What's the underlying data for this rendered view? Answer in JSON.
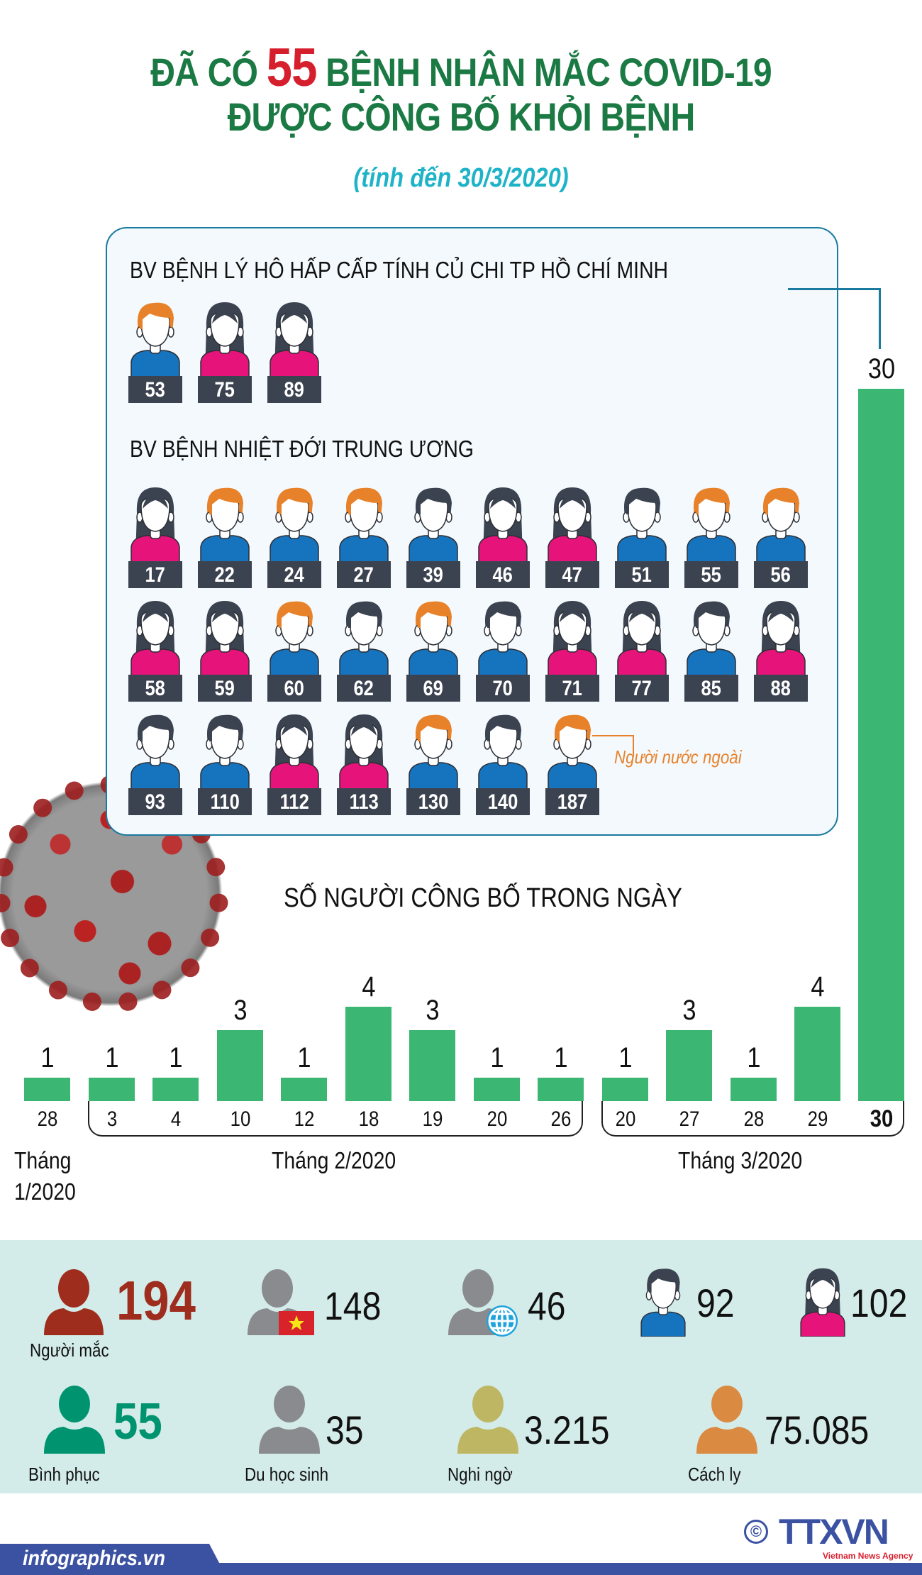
{
  "header": {
    "title_prefix": "ĐÃ CÓ",
    "title_highlight": "55",
    "title_suffix": "BỆNH NHÂN MẮC COVID-19",
    "title_line2": "ĐƯỢC CÔNG BỐ KHỎI BỆNH",
    "subtitle": "(tính đến 30/3/2020)"
  },
  "colors": {
    "title_green": "#1b7a44",
    "highlight_red": "#d61f2c",
    "subtitle_cyan": "#1fb3c8",
    "bar_green": "#3bb773",
    "panel_border": "#1a7aa0",
    "foreign_orange": "#e8822a",
    "male_shirt": "#1673bd",
    "female_shirt": "#e5137a",
    "hair_dark": "#3c4350",
    "stats_bg": "#d3ece9",
    "brand_blue": "#3b52a3"
  },
  "hospitals": [
    {
      "name": "BV BỆNH LÝ HÔ HẤP CẤP TÍNH CỦ CHI TP HỒ CHÍ MINH",
      "patients": [
        {
          "id": "53",
          "gender": "male",
          "foreign": true
        },
        {
          "id": "75",
          "gender": "female",
          "foreign": false
        },
        {
          "id": "89",
          "gender": "female",
          "foreign": false
        }
      ]
    },
    {
      "name": "BV BỆNH NHIỆT ĐỚI TRUNG ƯƠNG",
      "patients": [
        {
          "id": "17",
          "gender": "female",
          "foreign": false
        },
        {
          "id": "22",
          "gender": "male",
          "foreign": true
        },
        {
          "id": "24",
          "gender": "male",
          "foreign": true
        },
        {
          "id": "27",
          "gender": "male",
          "foreign": true
        },
        {
          "id": "39",
          "gender": "male",
          "foreign": false
        },
        {
          "id": "46",
          "gender": "female",
          "foreign": false
        },
        {
          "id": "47",
          "gender": "female",
          "foreign": false
        },
        {
          "id": "51",
          "gender": "male",
          "foreign": false
        },
        {
          "id": "55",
          "gender": "male",
          "foreign": true
        },
        {
          "id": "56",
          "gender": "male",
          "foreign": true
        },
        {
          "id": "58",
          "gender": "female",
          "foreign": false
        },
        {
          "id": "59",
          "gender": "female",
          "foreign": false
        },
        {
          "id": "60",
          "gender": "male",
          "foreign": true
        },
        {
          "id": "62",
          "gender": "male",
          "foreign": false
        },
        {
          "id": "69",
          "gender": "male",
          "foreign": true
        },
        {
          "id": "70",
          "gender": "male",
          "foreign": false
        },
        {
          "id": "71",
          "gender": "female",
          "foreign": false
        },
        {
          "id": "77",
          "gender": "female",
          "foreign": false
        },
        {
          "id": "85",
          "gender": "male",
          "foreign": false
        },
        {
          "id": "88",
          "gender": "female",
          "foreign": false
        },
        {
          "id": "93",
          "gender": "male",
          "foreign": false
        },
        {
          "id": "110",
          "gender": "male",
          "foreign": false
        },
        {
          "id": "112",
          "gender": "female",
          "foreign": false
        },
        {
          "id": "113",
          "gender": "female",
          "foreign": false
        },
        {
          "id": "130",
          "gender": "male",
          "foreign": true
        },
        {
          "id": "140",
          "gender": "male",
          "foreign": false
        },
        {
          "id": "187",
          "gender": "male",
          "foreign": true
        }
      ]
    }
  ],
  "legend": {
    "foreign_label": "Người nước ngoài"
  },
  "chart_data": {
    "type": "bar",
    "title": "SỐ NGƯỜI CÔNG BỐ TRONG NGÀY",
    "categories": [
      "28/1",
      "3/2",
      "4/2",
      "10/2",
      "12/2",
      "18/2",
      "19/2",
      "20/2",
      "26/2",
      "20/3",
      "27/3",
      "28/3",
      "29/3",
      "30/3"
    ],
    "tick_labels": [
      "28",
      "3",
      "4",
      "10",
      "12",
      "18",
      "19",
      "20",
      "26",
      "20",
      "27",
      "28",
      "29",
      "30"
    ],
    "values": [
      1,
      1,
      1,
      3,
      1,
      4,
      3,
      1,
      1,
      1,
      3,
      1,
      4,
      30
    ],
    "groups": [
      {
        "label": "Tháng 1/2020",
        "from": 0,
        "to": 0
      },
      {
        "label": "Tháng 2/2020",
        "from": 1,
        "to": 8
      },
      {
        "label": "Tháng 3/2020",
        "from": 9,
        "to": 13
      }
    ],
    "xlabel": "",
    "ylabel": "",
    "grid": false,
    "legend": null,
    "highlight_index": 13
  },
  "chart_labels": {
    "month1_line1": "Tháng",
    "month1_line2": "1/2020",
    "month2": "Tháng 2/2020",
    "month3": "Tháng 3/2020"
  },
  "stats": {
    "infected": {
      "value": "194",
      "label": "Người mắc",
      "icon": "person-icon",
      "color": "#9e2d1d"
    },
    "vietnamese": {
      "value": "148",
      "icon": "person-vietnam-flag-icon",
      "color": "#8a8b8f"
    },
    "foreigners": {
      "value": "46",
      "icon": "person-globe-icon",
      "color": "#8a8b8f"
    },
    "male": {
      "value": "92",
      "icon": "male-avatar-icon"
    },
    "female": {
      "value": "102",
      "icon": "female-avatar-icon"
    },
    "recovered": {
      "value": "55",
      "label": "Bình phục",
      "icon": "person-icon",
      "color": "#00936f"
    },
    "students_abroad": {
      "value": "35",
      "label": "Du học sinh",
      "icon": "person-icon",
      "color": "#8a8b8f"
    },
    "suspected": {
      "value": "3.215",
      "label": "Nghi ngờ",
      "icon": "person-icon",
      "color": "#bfb663"
    },
    "quarantined": {
      "value": "75.085",
      "label": "Cách ly",
      "icon": "person-icon",
      "color": "#db8a41"
    }
  },
  "footer": {
    "site": "infographics.vn",
    "copyright_symbol": "©",
    "agency_logo": "TTXVN",
    "agency_name": "Vietnam News Agency"
  }
}
